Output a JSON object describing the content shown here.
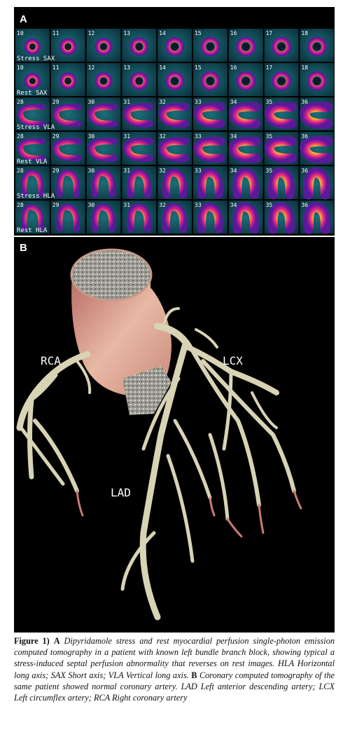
{
  "panel_a": {
    "label": "A",
    "rows": [
      {
        "label": "Stress SAX",
        "kind": "sax",
        "slices": [
          "10",
          "11",
          "12",
          "13",
          "14",
          "15",
          "16",
          "17",
          "18"
        ]
      },
      {
        "label": "Rest SAX",
        "kind": "sax",
        "slices": [
          "10",
          "11",
          "12",
          "13",
          "14",
          "15",
          "16",
          "17",
          "18"
        ]
      },
      {
        "label": "Stress VLA",
        "kind": "vla",
        "slices": [
          "28",
          "29",
          "30",
          "31",
          "32",
          "33",
          "34",
          "35",
          "36"
        ]
      },
      {
        "label": "Rest VLA",
        "kind": "vla",
        "slices": [
          "28",
          "29",
          "30",
          "31",
          "32",
          "33",
          "34",
          "35",
          "36"
        ]
      },
      {
        "label": "Stress HLA",
        "kind": "hla",
        "slices": [
          "28",
          "29",
          "30",
          "31",
          "32",
          "33",
          "34",
          "35",
          "36"
        ]
      },
      {
        "label": "Rest HLA",
        "kind": "hla",
        "slices": [
          "28",
          "29",
          "30",
          "31",
          "32",
          "33",
          "34",
          "35",
          "36"
        ]
      }
    ]
  },
  "panel_b": {
    "label": "B",
    "annotations": [
      "RCA",
      "LCX",
      "LAD"
    ]
  },
  "caption": {
    "label": "Figure 1)",
    "a_label": "A",
    "a_text": "Dipyridamole stress and rest myocardial perfusion single-photon emission computed tomography in a patient with known left bundle branch block, showing typical a stress-induced septal perfusion abnormality that reverses on rest images. HLA Horizontal long axis; SAX Short axis; VLA Vertical long axis.",
    "b_label": "B",
    "b_text": "Coronary computed tomography of the same patient showed normal coronary artery. LAD Left anterior descending artery; LCX Left circumflex artery; RCA Right coronary artery"
  }
}
